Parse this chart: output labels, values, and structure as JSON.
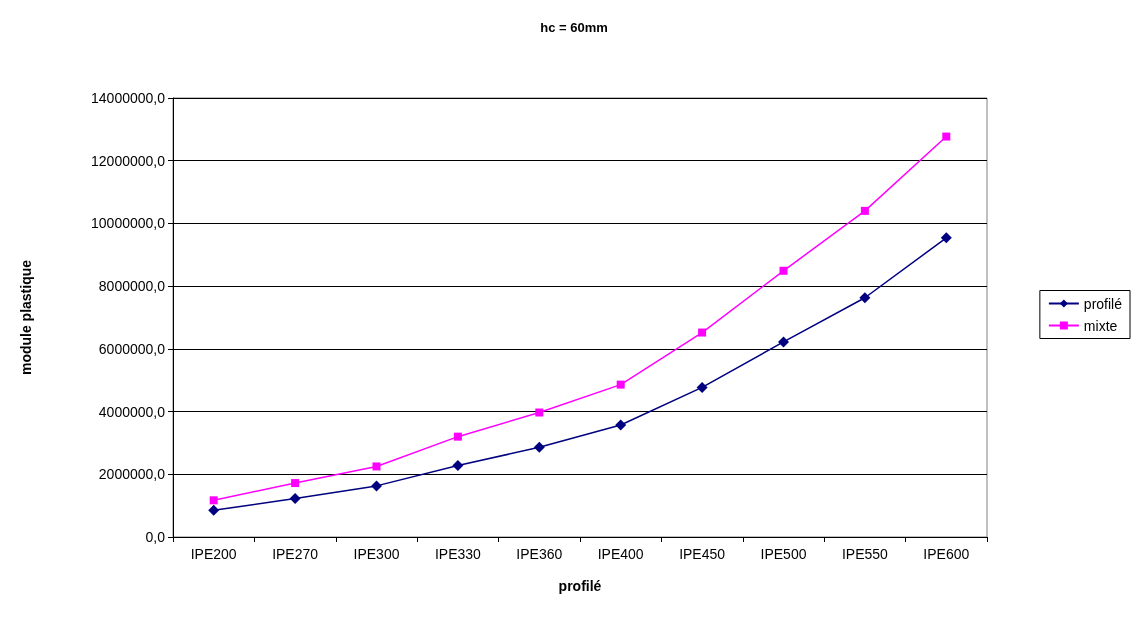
{
  "chart_data": {
    "type": "line",
    "title": "hc = 60mm",
    "xlabel": "profilé",
    "ylabel": "module plastique",
    "categories": [
      "IPE200",
      "IPE270",
      "IPE300",
      "IPE330",
      "IPE360",
      "IPE400",
      "IPE450",
      "IPE500",
      "IPE550",
      "IPE600"
    ],
    "series": [
      {
        "name": "profilé",
        "color": "#000080",
        "marker": "diamond",
        "values": [
          850000,
          1230000,
          1630000,
          2280000,
          2860000,
          3570000,
          4770000,
          6220000,
          7630000,
          9540000
        ]
      },
      {
        "name": "mixte",
        "color": "#ff00ff",
        "marker": "square",
        "values": [
          1170000,
          1720000,
          2250000,
          3200000,
          3970000,
          4860000,
          6520000,
          8490000,
          10400000,
          12770000
        ]
      }
    ],
    "ylim": [
      0,
      14000000
    ],
    "yticks": [
      {
        "value": 0,
        "label": "0,0"
      },
      {
        "value": 2000000,
        "label": "2000000,0"
      },
      {
        "value": 4000000,
        "label": "4000000,0"
      },
      {
        "value": 6000000,
        "label": "6000000,0"
      },
      {
        "value": 8000000,
        "label": "8000000,0"
      },
      {
        "value": 10000000,
        "label": "10000000,0"
      },
      {
        "value": 12000000,
        "label": "12000000,0"
      },
      {
        "value": 14000000,
        "label": "14000000,0"
      }
    ],
    "grid": "y",
    "legend": "right",
    "line_style": "solid"
  }
}
